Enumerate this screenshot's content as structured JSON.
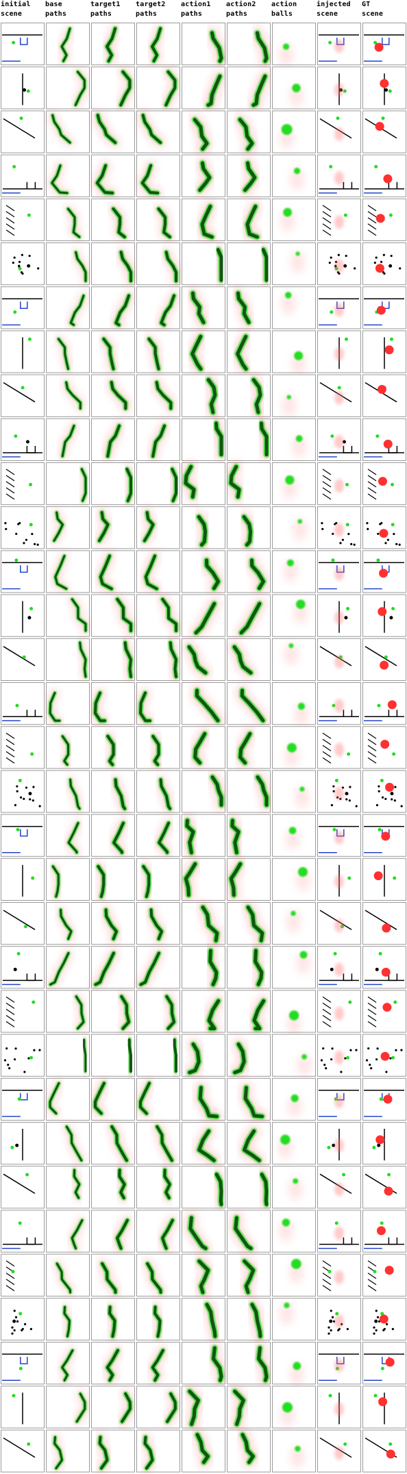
{
  "headers": [
    {
      "line1": "initial",
      "line2": "scene"
    },
    {
      "line1": "base",
      "line2": "paths"
    },
    {
      "line1": "target1",
      "line2": "paths"
    },
    {
      "line1": "target2",
      "line2": "paths"
    },
    {
      "line1": "action1",
      "line2": "paths"
    },
    {
      "line1": "action2",
      "line2": "paths"
    },
    {
      "line1": "action",
      "line2": "balls"
    },
    {
      "line1": "injected",
      "line2": "scene"
    },
    {
      "line1": "GT",
      "line2": "scene"
    }
  ],
  "grid": {
    "rows": 33,
    "cols": 9
  },
  "colors": {
    "border": "#9a9a9a",
    "ball_green": "#22dd22",
    "ball_red": "#ff3030",
    "ball_blue": "#2244cc",
    "black": "#000000",
    "path_dark": "#0d3d0d",
    "heat_red": "#ff6b6b"
  }
}
